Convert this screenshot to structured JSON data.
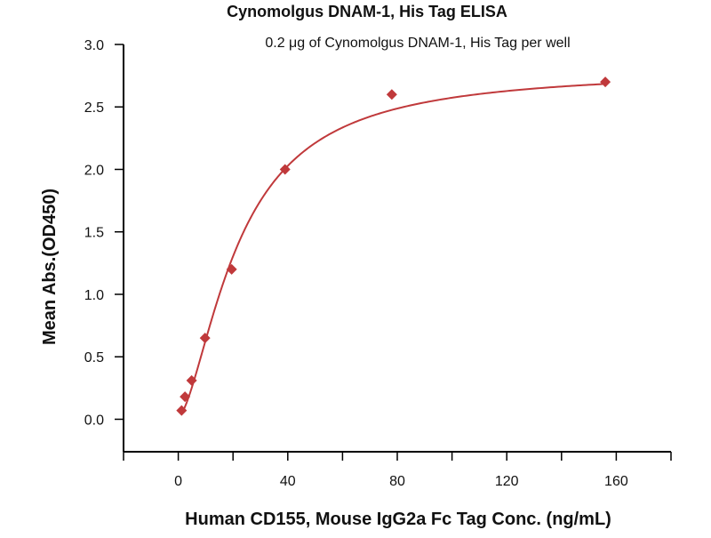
{
  "chart_data": {
    "type": "scatter",
    "title": "Cynomolgus DNAM-1, His Tag ELISA",
    "subtitle": "0.2 μg of Cynomolgus DNAM-1, His Tag per well",
    "xlabel": "Human CD155, Mouse IgG2a Fc Tag Conc. (ng/mL)",
    "ylabel": "Mean Abs.(OD450)",
    "xlim": [
      -20,
      180
    ],
    "ylim": [
      -0.26,
      3.0
    ],
    "xticks": [
      0,
      40,
      80,
      120,
      160
    ],
    "xtick_labels": [
      "0",
      "40",
      "80",
      "120",
      "160"
    ],
    "yticks": [
      0,
      0.5,
      1.0,
      1.5,
      2.0,
      2.5,
      3.0
    ],
    "ytick_labels": [
      "0.0",
      "0.5",
      "1.0",
      "1.5",
      "2.0",
      "2.5",
      "3.0"
    ],
    "grid": false,
    "series": [
      {
        "name": "Cynomolgus DNAM-1",
        "color": "#c0393b",
        "marker": "diamond",
        "x": [
          1.22,
          2.44,
          4.88,
          9.77,
          19.5,
          39,
          78,
          156
        ],
        "y": [
          0.07,
          0.18,
          0.31,
          0.65,
          1.2,
          2.0,
          2.6,
          2.7
        ]
      }
    ],
    "fit": {
      "model": "4PL",
      "bottom": 0.02,
      "top": 2.8,
      "ec50": 22,
      "hill": 1.6,
      "color": "#c0393b"
    }
  }
}
